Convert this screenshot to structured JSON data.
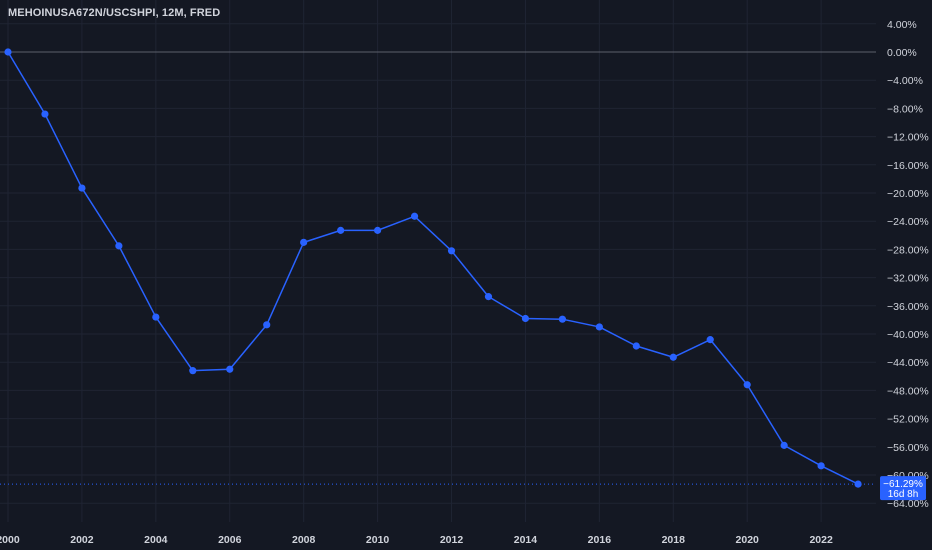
{
  "chart_data": {
    "type": "line",
    "title": "MEHOINUSA672N/USCSHPI, 12M, FRED",
    "x": [
      2000,
      2001,
      2002,
      2003,
      2004,
      2005,
      2006,
      2007,
      2008,
      2009,
      2010,
      2011,
      2012,
      2013,
      2014,
      2015,
      2016,
      2017,
      2018,
      2019,
      2020,
      2021,
      2022,
      2023
    ],
    "series": [
      {
        "values": [
          0.0,
          -8.8,
          -19.3,
          -27.5,
          -37.6,
          -45.2,
          -45.0,
          -38.7,
          -27.0,
          -25.3,
          -25.3,
          -23.3,
          -28.2,
          -34.7,
          -37.8,
          -37.9,
          -39.0,
          -41.7,
          -43.3,
          -40.8,
          -47.2,
          -55.8,
          -58.7,
          -61.29
        ],
        "color": "#2962ff"
      }
    ],
    "y_ticks": [
      "4.00%",
      "0.00%",
      "−4.00%",
      "−8.00%",
      "−12.00%",
      "−16.00%",
      "−20.00%",
      "−24.00%",
      "−28.00%",
      "−32.00%",
      "−36.00%",
      "−40.00%",
      "−44.00%",
      "−48.00%",
      "−52.00%",
      "−56.00%",
      "−60.00%",
      "−64.00%"
    ],
    "x_ticks": [
      "2000",
      "2002",
      "2004",
      "2006",
      "2008",
      "2010",
      "2012",
      "2014",
      "2016",
      "2018",
      "2020",
      "2022"
    ],
    "ylim": [
      -64,
      4
    ],
    "xlim": [
      2000,
      2023
    ],
    "grid": true,
    "zero_line": true,
    "last_value_label": "−61.29%",
    "countdown_label": "16d 8h",
    "colors": {
      "background": "#141823",
      "grid": "#1f2433",
      "line": "#2962ff",
      "text": "#d1d4dc",
      "badge": "#2962ff"
    }
  }
}
